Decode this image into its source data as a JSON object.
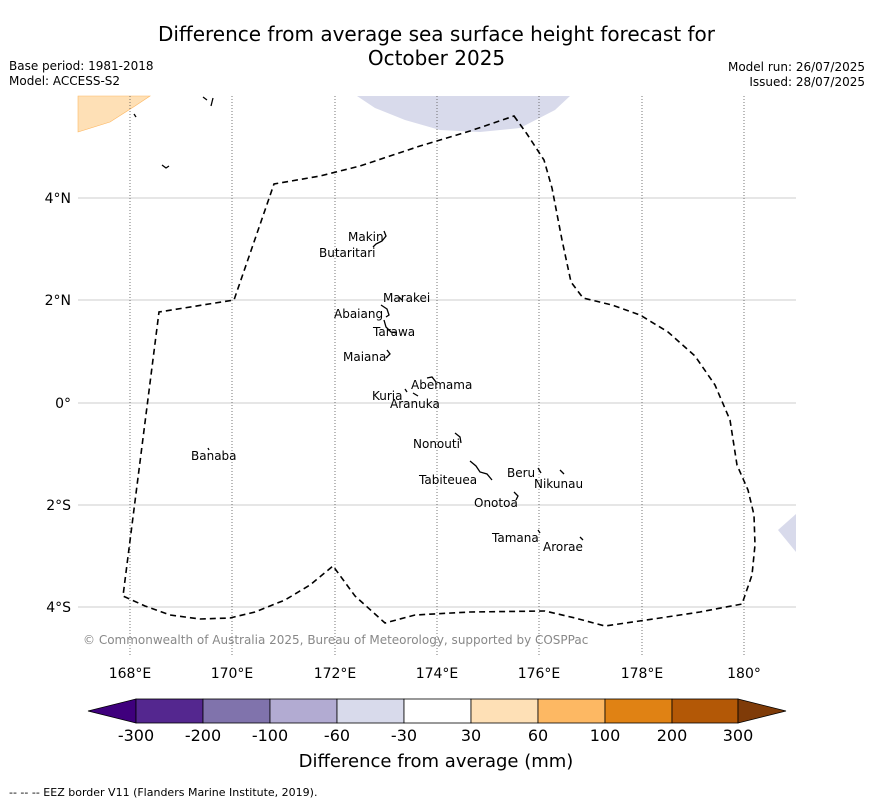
{
  "title_line1": "Difference from average sea surface height forecast for",
  "title_line2": "October 2025",
  "meta_left": [
    "Base period: 1981-2018",
    "Model: ACCESS-S2"
  ],
  "meta_right": [
    "Model run: 26/07/2025",
    "Issued: 28/07/2025"
  ],
  "x_ticks": [
    "168°E",
    "170°E",
    "172°E",
    "174°E",
    "176°E",
    "178°E",
    "180°"
  ],
  "y_ticks": [
    "4°N",
    "2°N",
    "0°",
    "2°S",
    "4°S"
  ],
  "islands": [
    {
      "name": "Makin",
      "lon": 172.9,
      "lat": 3.2
    },
    {
      "name": "Butaritari",
      "lon": 172.8,
      "lat": 3.1
    },
    {
      "name": "Marakei",
      "lon": 173.3,
      "lat": 2.0
    },
    {
      "name": "Abaiang",
      "lon": 172.9,
      "lat": 1.8
    },
    {
      "name": "Tarawa",
      "lon": 173.0,
      "lat": 1.4
    },
    {
      "name": "Maiana",
      "lon": 173.0,
      "lat": 0.9
    },
    {
      "name": "Abemama",
      "lon": 173.9,
      "lat": 0.4
    },
    {
      "name": "Kuria",
      "lon": 173.4,
      "lat": 0.2
    },
    {
      "name": "Aranuka",
      "lon": 173.6,
      "lat": 0.2
    },
    {
      "name": "Nonouti",
      "lon": 174.4,
      "lat": -0.7
    },
    {
      "name": "Banaba",
      "lon": 169.5,
      "lat": -0.9
    },
    {
      "name": "Beru",
      "lon": 176.0,
      "lat": -1.3
    },
    {
      "name": "Nikunau",
      "lon": 176.4,
      "lat": -1.4
    },
    {
      "name": "Tabiteuea",
      "lon": 174.8,
      "lat": -1.3
    },
    {
      "name": "Onotoa",
      "lon": 175.6,
      "lat": -1.8
    },
    {
      "name": "Tamana",
      "lon": 176.0,
      "lat": -2.5
    },
    {
      "name": "Arorae",
      "lon": 176.8,
      "lat": -2.6
    }
  ],
  "colorbar": {
    "title": "Difference from average (mm)",
    "boundaries": [
      "-300",
      "-200",
      "-100",
      "-60",
      "-30",
      "30",
      "60",
      "100",
      "200",
      "300"
    ],
    "colors": [
      "#3f007d",
      "#54278f",
      "#8073ac",
      "#b2abd2",
      "#d8daeb",
      "#ffffff",
      "#fee0b6",
      "#fdb863",
      "#e08214",
      "#b35806",
      "#7f3b08"
    ]
  },
  "credit": "© Commonwealth of Australia 2025, Bureau of Meteorology, supported by COSPPac",
  "footnote": "--  --  -- EEZ border V11 (Flanders Marine Institute, 2019)."
}
